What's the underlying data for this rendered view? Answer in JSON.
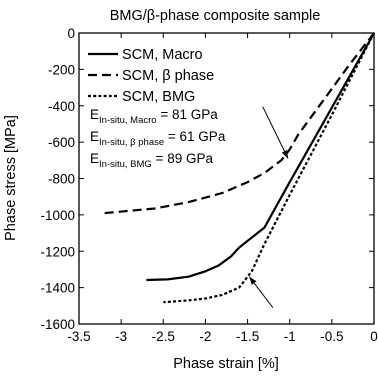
{
  "chart_data": {
    "type": "line",
    "title": "BMG/β-phase composite sample",
    "xlabel": "Phase strain   [%]",
    "ylabel": "Phase stress   [MPa]",
    "xlim": [
      -3.5,
      0
    ],
    "ylim": [
      -1600,
      0
    ],
    "xticks": [
      -3.5,
      -3,
      -2.5,
      -2,
      -1.5,
      -1,
      -0.5,
      0
    ],
    "xtick_labels": [
      "-3.5",
      "-3",
      "-2.5",
      "-2",
      "-1.5",
      "-1",
      "-0.5",
      "0"
    ],
    "yticks": [
      0,
      -200,
      -400,
      -600,
      -800,
      -1000,
      -1200,
      -1400,
      -1600
    ],
    "ytick_labels": [
      "0",
      "-200",
      "-400",
      "-600",
      "-800",
      "-1000",
      "-1200",
      "-1400",
      "-1600"
    ],
    "grid": false,
    "legend_position": "top-left",
    "series": [
      {
        "name": "SCM, Macro",
        "style": "solid",
        "x": [
          0,
          -0.5,
          -1.0,
          -1.3,
          -1.6,
          -1.7,
          -1.85,
          -2.0,
          -2.2,
          -2.45,
          -2.7
        ],
        "y": [
          0,
          -410,
          -820,
          -1070,
          -1180,
          -1230,
          -1280,
          -1310,
          -1340,
          -1355,
          -1358
        ]
      },
      {
        "name": "SCM, β phase",
        "style": "dashed",
        "x": [
          0,
          -0.3,
          -0.6,
          -0.9,
          -1.0,
          -1.1,
          -1.3,
          -1.5,
          -1.8,
          -2.2,
          -2.6,
          -3.2
        ],
        "y": [
          0,
          -180,
          -370,
          -560,
          -640,
          -700,
          -770,
          -820,
          -880,
          -930,
          -965,
          -990
        ]
      },
      {
        "name": "SCM, BMG",
        "style": "dotted",
        "x": [
          0,
          -0.5,
          -1.0,
          -1.3,
          -1.45,
          -1.6,
          -1.8,
          -2.0,
          -2.2,
          -2.5
        ],
        "y": [
          0,
          -450,
          -890,
          -1160,
          -1310,
          -1400,
          -1440,
          -1460,
          -1470,
          -1480
        ]
      }
    ],
    "annotations": [
      {
        "main": "E",
        "sub": "In-situ, Macro",
        "value": " = 81 GPa"
      },
      {
        "main": "E",
        "sub": "In-situ, β phase",
        "value": " = 61 GPa"
      },
      {
        "main": "E",
        "sub": "In-situ, BMG",
        "value": " = 89 GPa"
      }
    ],
    "arrows": [
      {
        "from": [
          -1.32,
          -405
        ],
        "to": [
          -1.02,
          -690
        ]
      },
      {
        "from": [
          -1.2,
          -1510
        ],
        "to": [
          -1.48,
          -1340
        ]
      }
    ]
  }
}
